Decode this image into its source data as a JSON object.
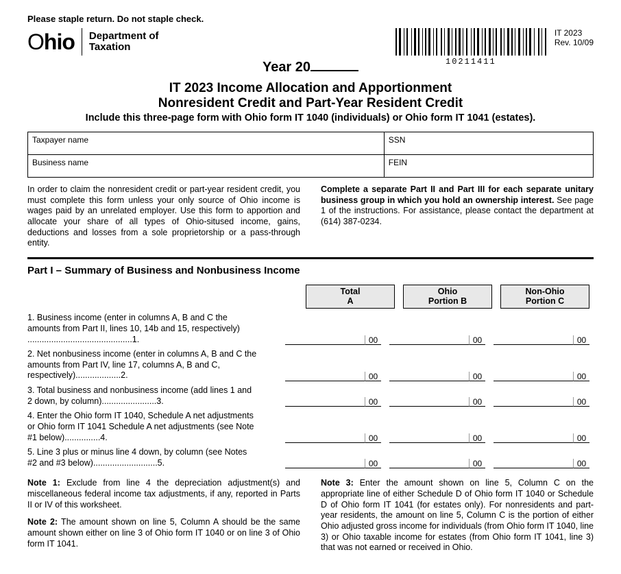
{
  "header": {
    "staple_notice": "Please staple return. Do not staple check.",
    "logo_prefix": "O",
    "logo_suffix": "hio",
    "dept_line1": "Department of",
    "dept_line2": "Taxation",
    "barcode_number": "10211411",
    "form_id": "IT 2023",
    "revision": "Rev. 10/09",
    "year_prefix": "Year 20",
    "title_1": "IT 2023 Income Allocation and Apportionment",
    "title_2": "Nonresident Credit and Part-Year Resident Credit",
    "subtitle": "Include this three-page form with Ohio form IT 1040 (individuals) or Ohio form IT 1041 (estates)."
  },
  "id_box": {
    "taxpayer_label": "Taxpayer name",
    "ssn_label": "SSN",
    "business_label": "Business name",
    "fein_label": "FEIN"
  },
  "instructions": {
    "left": "In order to claim the nonresident credit or part-year resident credit, you must complete this form unless your only source of Ohio income is wages paid by an unrelated employer. Use this form to apportion and allocate your share of all types of Ohio-sitused income, gains, deductions and losses from a sole proprietorship or a pass-through entity.",
    "right_bold": "Complete a separate Part II and Part III for each separate unitary business group in which you hold an ownership interest.",
    "right_rest": " See page 1 of the instructions. For assistance, please contact the department at (614) 387-0234."
  },
  "part1": {
    "title": "Part I – Summary of Business and Nonbusiness Income",
    "headers": {
      "a": "Total\nA",
      "b": "Ohio\nPortion B",
      "c": "Non-Ohio\nPortion C"
    },
    "lines": [
      {
        "num": "1.",
        "text": "1. Business income (enter in columns A, B and C the amounts from Part II, lines 10, 14b and 15, respectively) ............................................1."
      },
      {
        "num": "2.",
        "text": "2. Net nonbusiness income (enter in columns A, B and C the amounts from Part IV, line 17, columns A, B and C, respectively)...................2."
      },
      {
        "num": "3.",
        "text": "3. Total business and nonbusiness income (add lines 1 and 2 down, by column).......................3."
      },
      {
        "num": "4.",
        "text": "4. Enter the Ohio form IT 1040, Schedule A net adjustments or Ohio form IT 1041 Schedule A net adjustments (see Note #1 below)...............4."
      },
      {
        "num": "5.",
        "text": "5. Line 3 plus or minus line 4 down, by column (see Notes #2 and #3 below)...........................5."
      }
    ],
    "cents": "00"
  },
  "notes": {
    "n1_label": "Note 1:",
    "n1": " Exclude from line 4 the depreciation adjustment(s) and miscellaneous federal income tax adjustments, if any, reported in Parts II or IV of this worksheet.",
    "n2_label": "Note 2:",
    "n2": " The amount shown on line 5, Column A should be the same amount shown either on line 3 of Ohio form IT 1040 or on line 3 of Ohio form IT 1041.",
    "n3_label": "Note 3:",
    "n3": " Enter the amount shown on line 5, Column C on the appropriate line of either Schedule D of Ohio form IT 1040 or Schedule D of Ohio form IT 1041 (for estates only). For nonresidents and part-year residents, the amount on line 5, Column C is the portion of either Ohio adjusted gross income for individuals (from Ohio form IT 1040, line 3) or Ohio taxable income for estates (from Ohio form IT 1041, line 3) that was not earned or received in Ohio."
  },
  "style": {
    "header_bg": "#e8e8e8",
    "border": "#000000"
  }
}
